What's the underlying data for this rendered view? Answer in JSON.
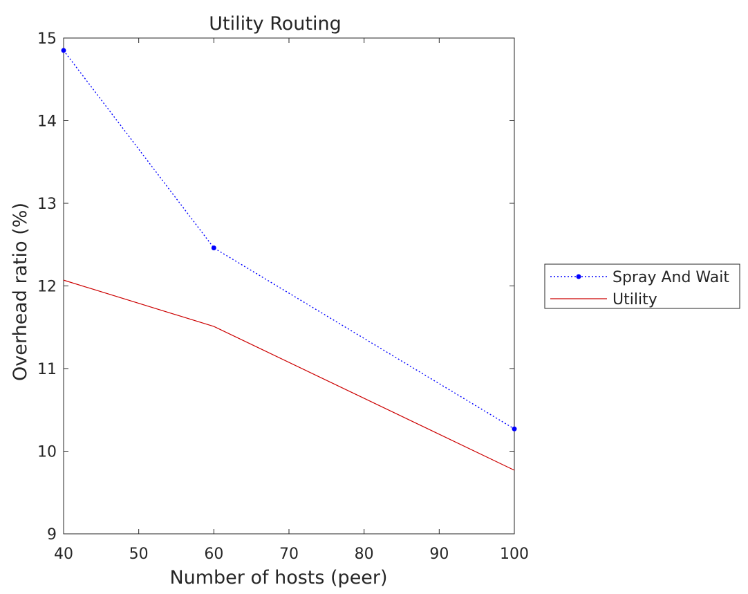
{
  "chart_data": {
    "type": "line",
    "title": "Utility Routing",
    "xlabel": "Number of hosts  (peer)",
    "ylabel": "Overhead ratio (%)",
    "xlim": [
      40,
      100
    ],
    "ylim": [
      9,
      15
    ],
    "xticks": [
      "40",
      "50",
      "60",
      "70",
      "80",
      "90",
      "100"
    ],
    "yticks": [
      "9",
      "10",
      "11",
      "12",
      "13",
      "14",
      "15"
    ],
    "grid": false,
    "legend_position": "outside right",
    "series": [
      {
        "name": "Spray And Wait",
        "color": "#0000ff",
        "style": "dotted-with-markers",
        "x": [
          40,
          60,
          100
        ],
        "y": [
          14.85,
          12.46,
          10.27
        ]
      },
      {
        "name": "Utility",
        "color": "#cc0000",
        "style": "solid",
        "x": [
          40,
          60,
          100
        ],
        "y": [
          12.07,
          11.51,
          9.77
        ]
      }
    ]
  }
}
